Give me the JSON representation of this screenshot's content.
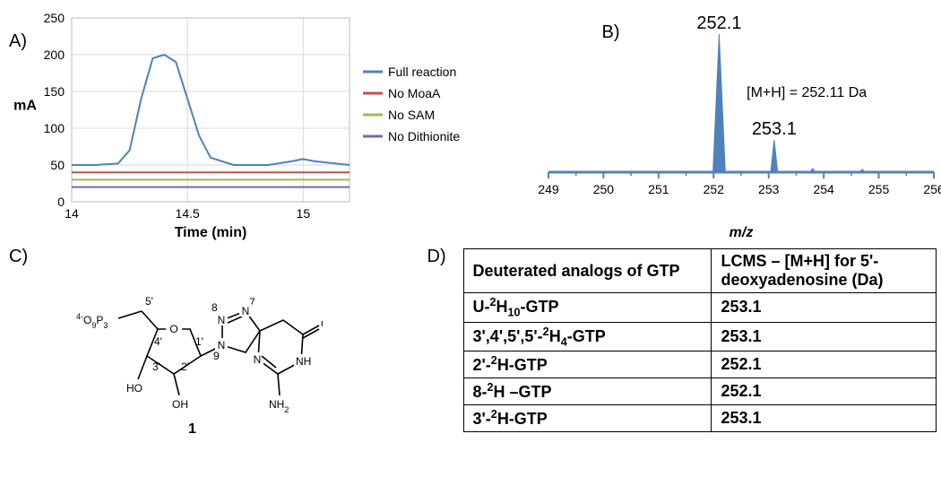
{
  "panelA": {
    "label": "A)",
    "type": "line",
    "xlabel": "Time (min)",
    "ylabel": "mA",
    "xlim": [
      14,
      15.2
    ],
    "ylim": [
      0,
      250
    ],
    "yticks": [
      0,
      50,
      100,
      150,
      200,
      250
    ],
    "xticks": [
      14,
      14.5,
      15
    ],
    "background_color": "#ffffff",
    "grid_color": "#d9d9d9",
    "series": [
      {
        "name": "Full reaction",
        "color": "#4f81bd",
        "x": [
          14,
          14.1,
          14.2,
          14.25,
          14.3,
          14.35,
          14.4,
          14.45,
          14.5,
          14.55,
          14.6,
          14.7,
          14.85,
          14.95,
          15.0,
          15.05,
          15.2
        ],
        "y": [
          50,
          50,
          52,
          70,
          140,
          195,
          200,
          190,
          140,
          90,
          60,
          50,
          50,
          55,
          58,
          55,
          50
        ]
      },
      {
        "name": "No MoaA",
        "color": "#c0504d",
        "x": [
          14,
          15.2
        ],
        "y": [
          40,
          40
        ]
      },
      {
        "name": "No SAM",
        "color": "#9bbb59",
        "x": [
          14,
          15.2
        ],
        "y": [
          30,
          30
        ]
      },
      {
        "name": "No Dithionite",
        "color": "#8064a2",
        "x": [
          14,
          15.2
        ],
        "y": [
          20,
          20
        ]
      }
    ],
    "line_width": 2,
    "label_fontsize": 16
  },
  "panelB": {
    "label": "B)",
    "type": "mass-spectrum",
    "xlabel": "m/z",
    "xlim": [
      249,
      256
    ],
    "xticks": [
      249,
      250,
      251,
      252,
      253,
      254,
      255,
      256
    ],
    "baseline_y": 0.86,
    "peaks": [
      {
        "mz": 252.1,
        "height": 0.77,
        "label": "252.1",
        "label_dy": -6
      },
      {
        "mz": 253.1,
        "height": 0.18,
        "label": "253.1",
        "label_dy": -6
      },
      {
        "mz": 253.8,
        "height": 0.02,
        "label": "",
        "label_dy": 0
      },
      {
        "mz": 254.7,
        "height": 0.015,
        "label": "",
        "label_dy": 0
      }
    ],
    "annotation": "[M+H] = 252.11 Da",
    "color": "#4f81bd",
    "line_width": 3,
    "label_fontsize": 16
  },
  "panelC": {
    "label": "C)",
    "compound_number": "1",
    "atoms": {
      "phosphate": "4-O9P3",
      "positions": [
        "5'",
        "4'",
        "3'",
        "2'",
        "1'"
      ],
      "ring_atoms": [
        "7",
        "8",
        "9"
      ]
    }
  },
  "panelD": {
    "label": "D)",
    "columns": [
      "Deuterated analogs of GTP",
      "LCMS – [M+H] for 5'-deoxyadenosine (Da)"
    ],
    "rows": [
      [
        "U-2H10-GTP",
        "253.1"
      ],
      [
        "3',4',5',5'-2H4-GTP",
        "253.1"
      ],
      [
        "2'-2H-GTP",
        "252.1"
      ],
      [
        "8-2H –GTP",
        "252.1"
      ],
      [
        "3'-2H-GTP",
        "253.1"
      ]
    ]
  }
}
